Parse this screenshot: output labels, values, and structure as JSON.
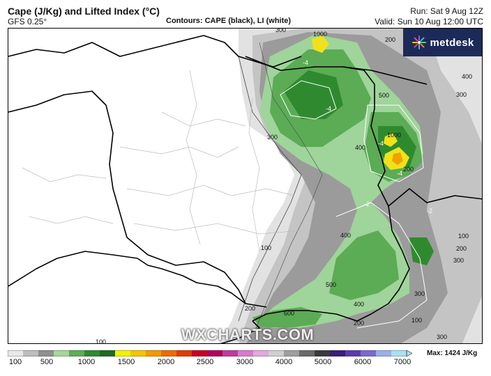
{
  "header": {
    "title": "Cape (J/Kg) and Lifted Index (°C)",
    "model": "GFS 0.25°",
    "contours": "Contours: CAPE (black), LI (white)",
    "run": "Run: Sat 9 Aug 12Z",
    "valid": "Valid: Sun 10 Aug 12:00 UTC"
  },
  "brand": {
    "logo_text": "metdesk",
    "watermark": "WXCHARTS.COM"
  },
  "colorbar": {
    "ticks": [
      "100",
      "500",
      "1000",
      "1500",
      "2000",
      "2500",
      "3000",
      "4000",
      "5000",
      "6000",
      "7000"
    ],
    "max_label": "Max: 1424 J/Kg",
    "colors": [
      "#e8e8e8",
      "#bdbdbd",
      "#8f8f8f",
      "#a5d79a",
      "#5dae55",
      "#2f8a2f",
      "#1f6b1f",
      "#f2f200",
      "#f5c400",
      "#f29a00",
      "#ee6a00",
      "#e23a00",
      "#c7001f",
      "#b0005a",
      "#c03aa0",
      "#d67ad0",
      "#e4a6e0",
      "#cfcfcf",
      "#9e9e9e",
      "#6a6a6a",
      "#3a3a3a",
      "#3a1f7a",
      "#5a3ab0",
      "#7a6ad0",
      "#9ab0e6",
      "#a8e0f2"
    ]
  },
  "contour_labels": [
    "300",
    "1000",
    "200",
    "400",
    "500",
    "300",
    "1000",
    "400",
    "300",
    "100",
    "400",
    "200",
    "300",
    "100",
    "500",
    "400",
    "300",
    "200",
    "200",
    "100",
    "200",
    "600",
    "300",
    "100",
    "-4",
    "-4",
    "-4",
    "-4",
    "-2",
    "-2"
  ]
}
